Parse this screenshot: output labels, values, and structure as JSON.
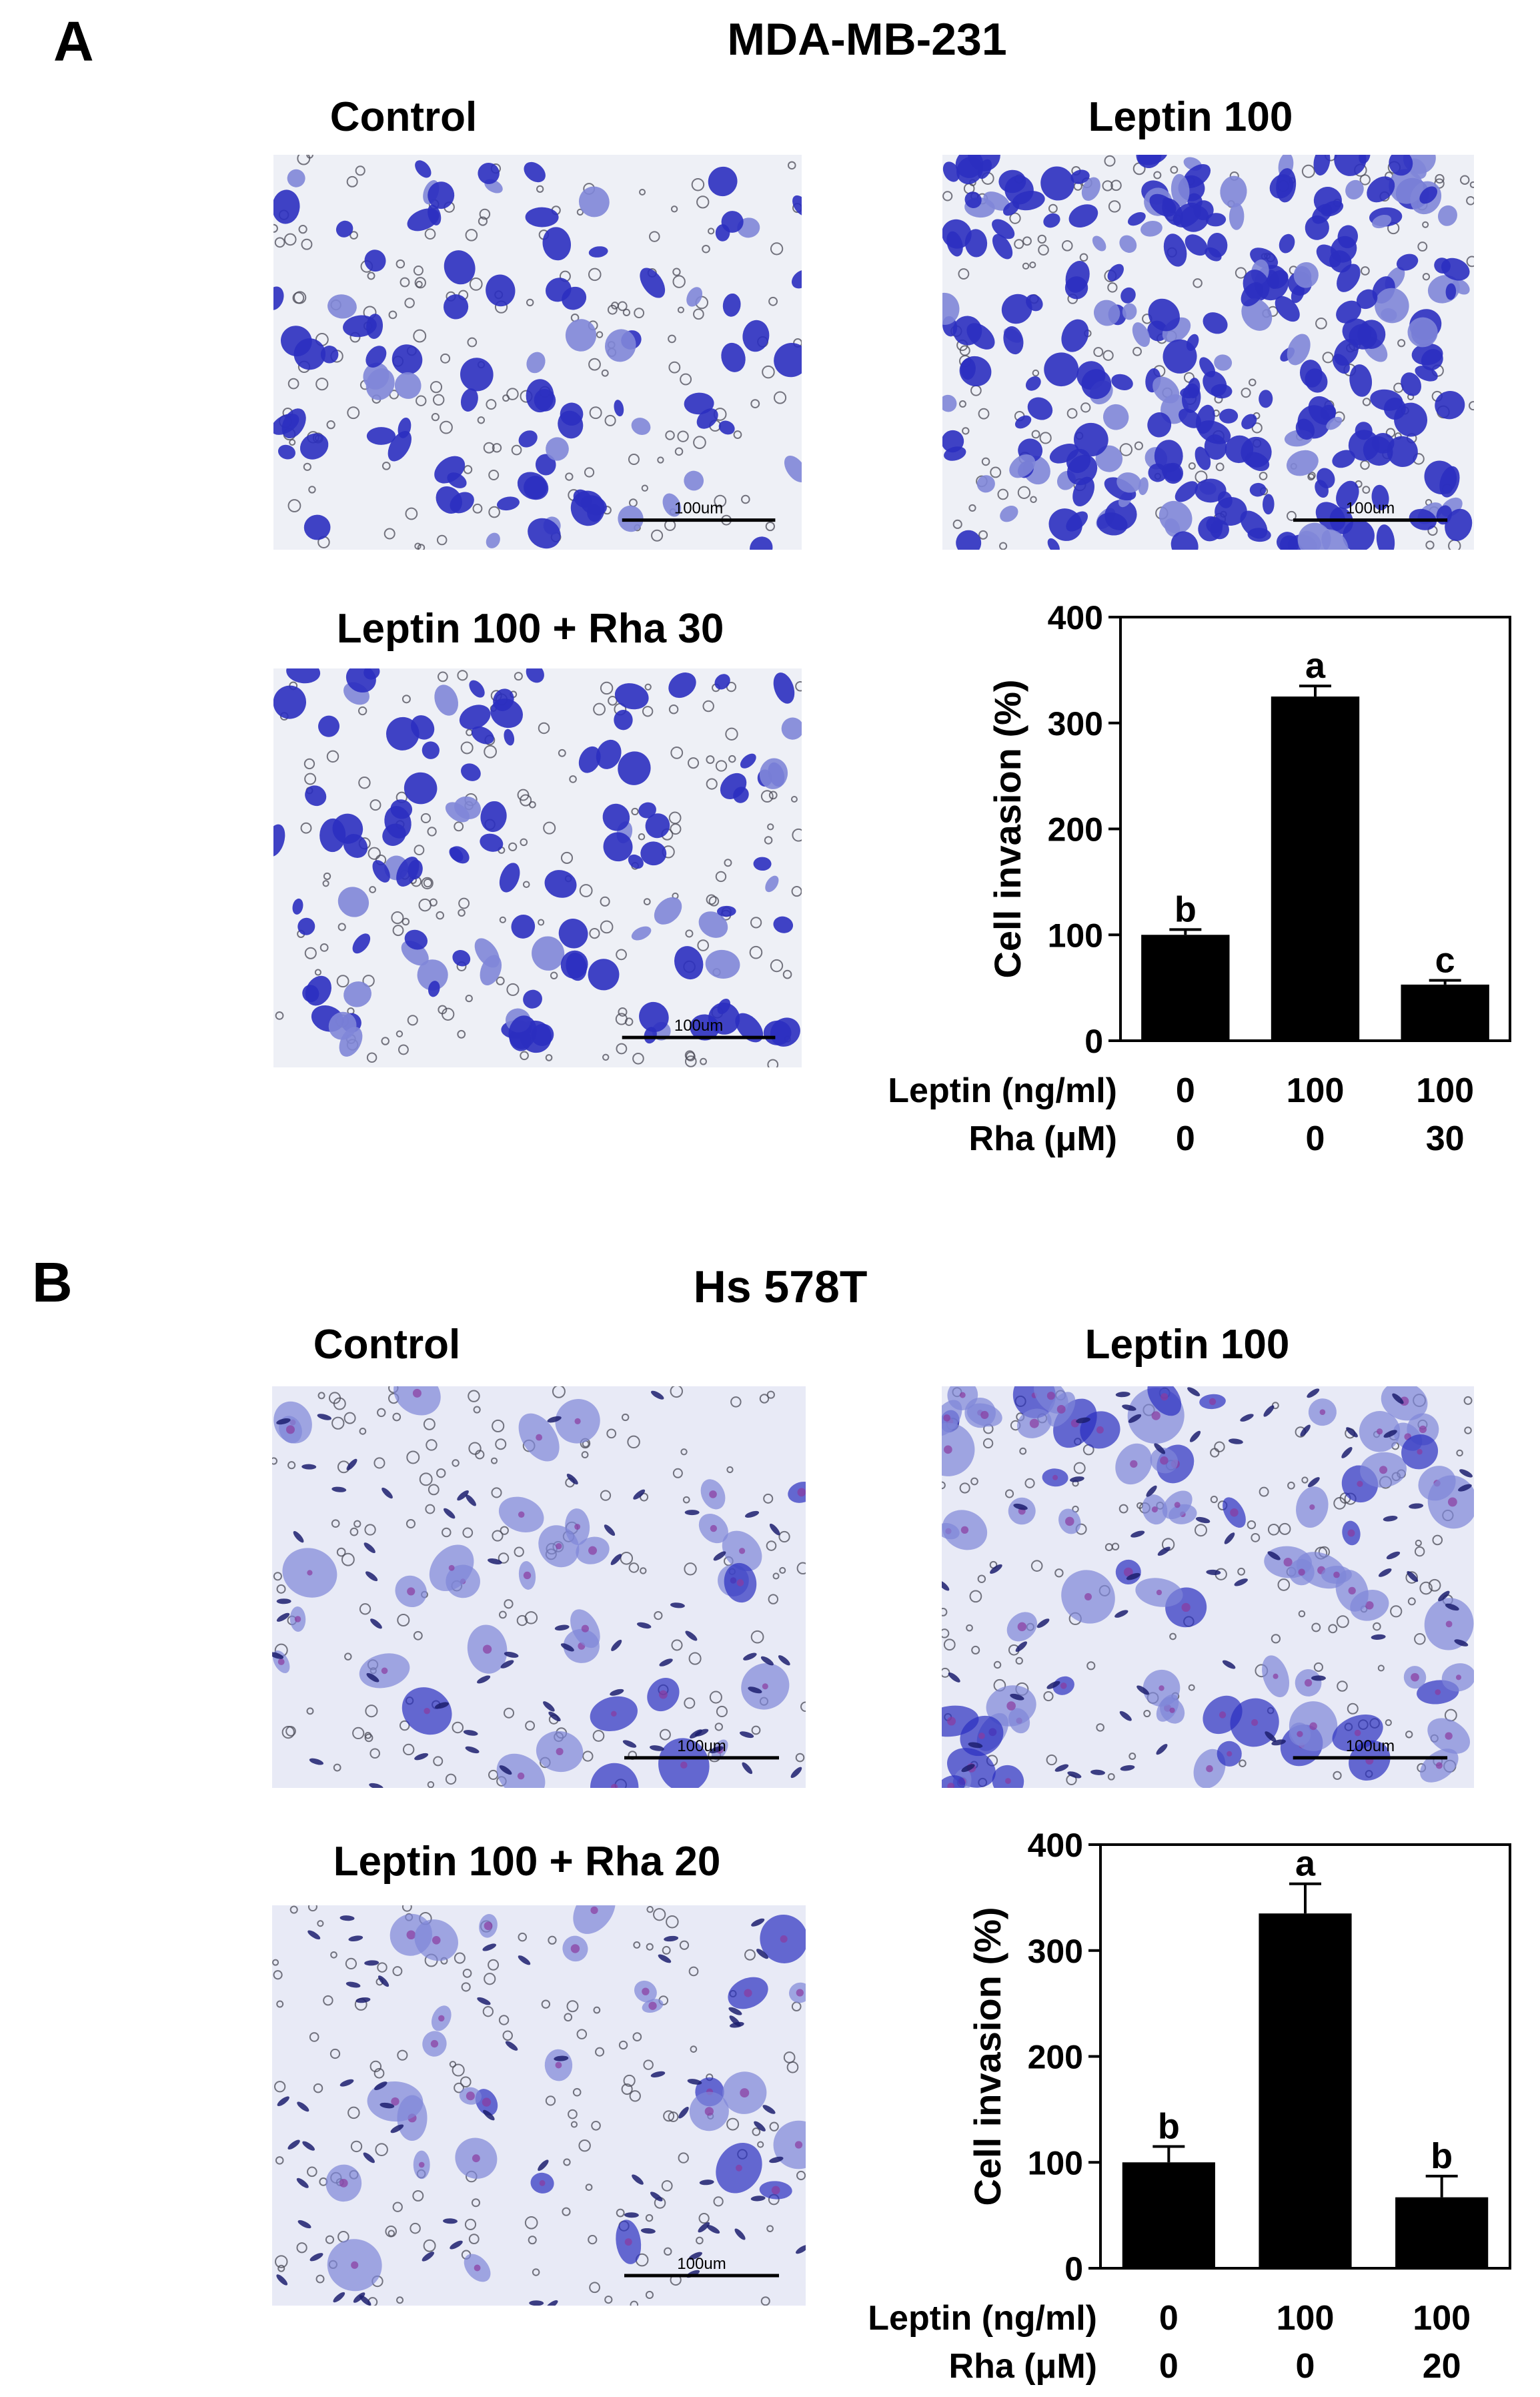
{
  "panel_a": {
    "letter": "A",
    "title": "MDA-MB-231",
    "images": [
      {
        "title": "Control",
        "scale_bar": "100um",
        "density": 90
      },
      {
        "title": "Leptin 100",
        "scale_bar": "100um",
        "density": 260
      },
      {
        "title": "Leptin 100 + Rha 30",
        "scale_bar": "100um",
        "density": 110
      }
    ]
  },
  "panel_b": {
    "letter": "B",
    "title": "Hs 578T",
    "images": [
      {
        "title": "Control",
        "scale_bar": "100um",
        "density": 35
      },
      {
        "title": "Leptin 100",
        "scale_bar": "100um",
        "density": 80
      },
      {
        "title": "Leptin 100 + Rha 20",
        "scale_bar": "100um",
        "density": 30
      }
    ]
  },
  "colors": {
    "stain_dark": "#2b2fc0",
    "stain_light": "#7f86d8",
    "field_a": "#eef0f6",
    "field_b": "#e8eaf6",
    "bar": "#000000"
  },
  "chart_data": [
    {
      "type": "bar",
      "title": "",
      "ylabel": "Cell invasion (%)",
      "ylim": [
        0,
        400
      ],
      "yticks": [
        0,
        100,
        200,
        300,
        400
      ],
      "categories": [
        "Leptin 0 / Rha 0",
        "Leptin 100 / Rha 0",
        "Leptin 100 / Rha 30"
      ],
      "values": [
        100,
        325,
        53
      ],
      "errors": [
        5,
        10,
        4
      ],
      "letters": [
        "b",
        "a",
        "c"
      ],
      "condition_rows": [
        {
          "label": "Leptin (ng/ml)",
          "values": [
            "0",
            "100",
            "100"
          ]
        },
        {
          "label": "Rha (μM)",
          "values": [
            "0",
            "0",
            "30"
          ]
        }
      ],
      "grid": false
    },
    {
      "type": "bar",
      "title": "",
      "ylabel": "Cell invasion (%)",
      "ylim": [
        0,
        400
      ],
      "yticks": [
        0,
        100,
        200,
        300,
        400
      ],
      "categories": [
        "Leptin 0 / Rha 0",
        "Leptin 100 / Rha 0",
        "Leptin 100 / Rha 20"
      ],
      "values": [
        100,
        335,
        67
      ],
      "errors": [
        15,
        28,
        20
      ],
      "letters": [
        "b",
        "a",
        "b"
      ],
      "condition_rows": [
        {
          "label": "Leptin (ng/ml)",
          "values": [
            "0",
            "100",
            "100"
          ]
        },
        {
          "label": "Rha (μM)",
          "values": [
            "0",
            "0",
            "20"
          ]
        }
      ],
      "grid": false
    }
  ]
}
